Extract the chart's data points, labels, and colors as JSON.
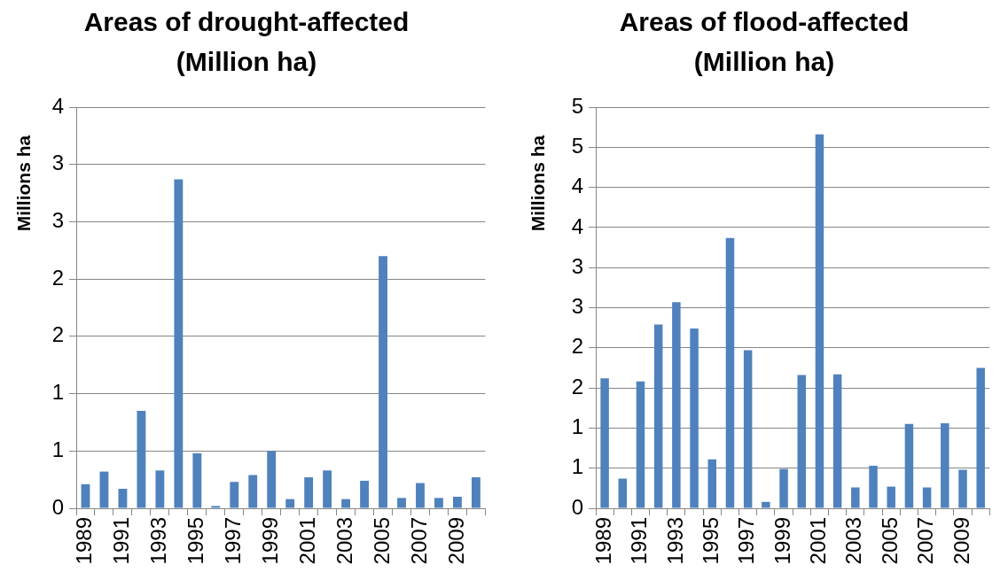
{
  "chart_data": [
    {
      "type": "bar",
      "title": "Areas of drought-affected (Million ha)",
      "ylabel": "Millions ha",
      "categories": [
        "1989",
        null,
        "1991",
        null,
        "1993",
        null,
        "1995",
        null,
        "1997",
        null,
        "1999",
        null,
        "2001",
        null,
        "2003",
        null,
        "2005",
        null,
        "2007",
        null,
        "2009",
        null
      ],
      "values": [
        0.21,
        0.32,
        0.17,
        0.85,
        0.33,
        2.87,
        0.48,
        0.02,
        0.23,
        0.29,
        0.5,
        0.08,
        0.27,
        0.33,
        0.08,
        0.24,
        2.2,
        0.09,
        0.22,
        0.09,
        0.1,
        0.27
      ],
      "color": "#4f81bd",
      "ylim": [
        0,
        3.5
      ],
      "yticks": [
        0,
        {
          "value": 0.5,
          "label": "1"
        },
        1,
        {
          "value": 1.5,
          "label": "2"
        },
        2,
        {
          "value": 2.5,
          "label": "3"
        },
        3,
        {
          "value": 3.5,
          "label": "4"
        }
      ],
      "grid": "y"
    },
    {
      "type": "bar",
      "title": "Areas of flood-affected (Million ha)",
      "ylabel": "Millions ha",
      "categories": [
        "1989",
        null,
        "1991",
        null,
        "1993",
        null,
        "1995",
        null,
        "1997",
        null,
        "1999",
        null,
        "2001",
        null,
        "2003",
        null,
        "2005",
        null,
        "2007",
        null,
        "2009",
        null
      ],
      "values": [
        1.62,
        0.37,
        1.58,
        2.29,
        2.57,
        2.24,
        0.61,
        3.37,
        1.97,
        0.08,
        0.49,
        1.66,
        4.66,
        1.67,
        0.26,
        0.53,
        0.27,
        1.05,
        0.26,
        1.06,
        0.48,
        1.75
      ],
      "color": "#4f81bd",
      "ylim": [
        0,
        5
      ],
      "yticks": [
        0,
        {
          "value": 0.5,
          "label": "1"
        },
        1,
        {
          "value": 1.5,
          "label": "2"
        },
        2,
        {
          "value": 2.5,
          "label": "3"
        },
        3,
        {
          "value": 3.5,
          "label": "4"
        },
        4,
        {
          "value": 4.5,
          "label": "5"
        },
        5
      ],
      "grid": "y"
    }
  ]
}
